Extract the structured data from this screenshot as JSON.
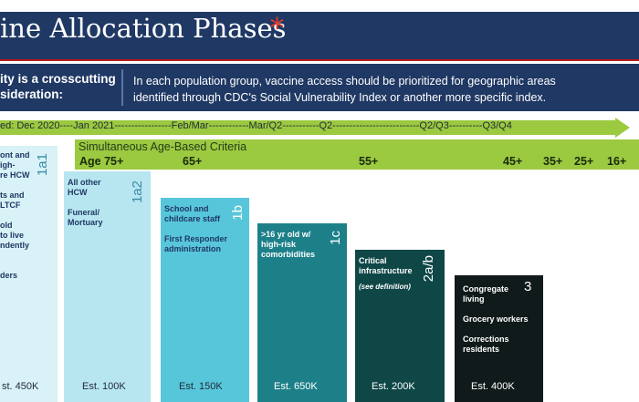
{
  "header": {
    "title": "ine Allocation Phases",
    "asterisk": "*"
  },
  "equity": {
    "left_line1": "ity is a crosscutting",
    "left_line2": "sideration:",
    "right_line1": "In each population group, vaccine access should be prioritized for geographic areas",
    "right_line2": "identified through CDC's Social Vulnerability Index or another more specific index."
  },
  "timeline": {
    "text": "ed: Dec 2020----Jan 2021-----------------Feb/Mar------------Mar/Q2-----------Q2--------------------------Q2/Q3----------Q3/Q4"
  },
  "age_band": {
    "label": "Simultaneous Age-Based Criteria",
    "ages": [
      "Age 75+",
      "65+",
      "55+",
      "45+",
      "35+",
      "25+",
      "16+"
    ]
  },
  "phases": [
    {
      "code": "1a1",
      "lines": [
        "ont and",
        "igh-",
        "re HCW",
        "",
        "ts and",
        "LTCF",
        "",
        "old",
        "to live",
        "ndently",
        "",
        "ders"
      ],
      "est": "st. 450K",
      "color": "#d9f2f7",
      "text_color": "#1f3864"
    },
    {
      "code": "1a2",
      "lines": [
        "All other",
        "HCW",
        "",
        "Funeral/",
        "Mortuary"
      ],
      "est": "Est. 100K",
      "color": "#b7e6f0",
      "text_color": "#1f3864"
    },
    {
      "code": "1b",
      "lines": [
        "School and",
        "childcare staff",
        "",
        "First Responder",
        "administration"
      ],
      "est": "Est. 150K",
      "color": "#58c6da",
      "text_color": "#1f3864"
    },
    {
      "code": "1c",
      "lines": [
        ">16 yr old w/",
        "high-risk",
        "comorbidities"
      ],
      "est": "Est. 650K",
      "color": "#1d8089",
      "text_color": "#ffffff"
    },
    {
      "code": "2a/b",
      "lines": [
        "Critical",
        "infrastructure",
        "",
        "(see definition)"
      ],
      "est": "Est. 200K",
      "color": "#0f4747",
      "text_color": "#ffffff"
    },
    {
      "code": "3",
      "lines": [
        "Congregate",
        "living",
        "",
        "Grocery workers",
        "",
        "Corrections",
        "residents"
      ],
      "est": "Est. 400K",
      "color": "#111a1a",
      "text_color": "#ffffff"
    }
  ]
}
